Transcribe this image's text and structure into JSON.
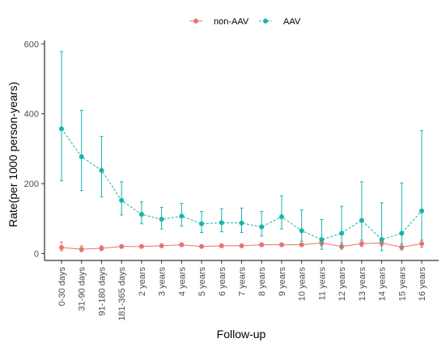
{
  "chart_data": {
    "type": "line",
    "xlabel": "Follow-up",
    "ylabel": "Rate(per 1000 person-years)",
    "ylim": [
      -20,
      610
    ],
    "yticks": [
      0,
      200,
      400,
      600
    ],
    "grid": false,
    "legend_position": "top",
    "categories": [
      "0-30 days",
      "31-90 days",
      "91-180 days",
      "181-365 days",
      "2 years",
      "3 years",
      "4 years",
      "5 years",
      "6 years",
      "7 years",
      "8 years",
      "9 years",
      "10 years",
      "11 years",
      "12 years",
      "13 years",
      "14 years",
      "15 years",
      "16 years"
    ],
    "series": [
      {
        "name": "non-AAV",
        "color": "#E8736C",
        "line_style": "solid",
        "values": [
          17,
          12,
          15,
          20,
          20,
          22,
          25,
          20,
          22,
          22,
          25,
          25,
          25,
          30,
          20,
          28,
          30,
          18,
          28
        ],
        "lower": [
          8,
          5,
          8,
          15,
          16,
          18,
          20,
          16,
          18,
          18,
          20,
          20,
          20,
          22,
          12,
          20,
          22,
          10,
          18
        ],
        "upper": [
          33,
          22,
          22,
          25,
          25,
          27,
          30,
          25,
          27,
          27,
          30,
          30,
          30,
          38,
          30,
          38,
          40,
          28,
          38
        ]
      },
      {
        "name": "AAV",
        "color": "#18B3AF",
        "line_style": "dashed",
        "values": [
          357,
          277,
          238,
          152,
          112,
          98,
          107,
          85,
          88,
          87,
          76,
          105,
          65,
          40,
          58,
          95,
          40,
          58,
          122
        ],
        "lower": [
          208,
          180,
          162,
          110,
          85,
          70,
          78,
          60,
          62,
          60,
          50,
          70,
          35,
          12,
          18,
          38,
          8,
          15,
          38
        ],
        "upper": [
          578,
          410,
          335,
          205,
          148,
          132,
          143,
          120,
          128,
          130,
          120,
          165,
          125,
          97,
          135,
          205,
          145,
          202,
          352
        ]
      }
    ]
  }
}
